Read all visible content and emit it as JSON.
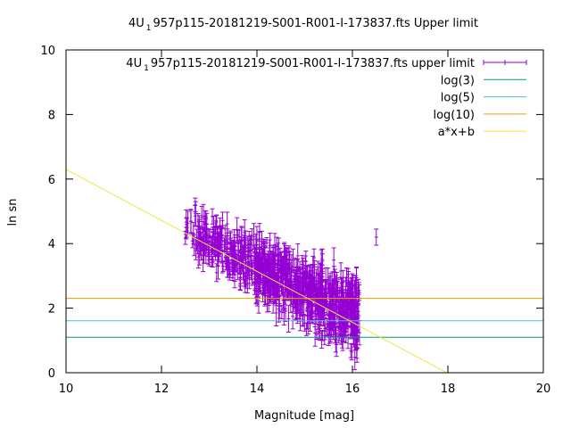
{
  "chart_data": {
    "type": "scatter",
    "title": {
      "prefix": "4U",
      "subscript": "1",
      "rest": "957p115-20181219-S001-R001-I-173837.fts Upper limit"
    },
    "xlabel": "Magnitude [mag]",
    "ylabel": "ln sn",
    "xlim": [
      10,
      20
    ],
    "ylim": [
      0,
      10
    ],
    "x_ticks": [
      10,
      12,
      14,
      16,
      18,
      20
    ],
    "y_ticks": [
      0,
      2,
      4,
      6,
      8,
      10
    ],
    "grid": false,
    "legend_position": "top-right",
    "series": [
      {
        "name": {
          "prefix": "4U",
          "subscript": "1",
          "rest": "957p115-20181219-S001-R001-I-173837.fts upper limit"
        },
        "style": "points-with-errorbars",
        "color": "#9400d3",
        "x_range": [
          12.45,
          16.15
        ],
        "y_center_fit": {
          "a": -0.75,
          "b": 13.8
        },
        "y_spread": 0.45,
        "y_error_typical": 0.3,
        "outlier": {
          "x": 16.5,
          "y": 4.2,
          "error": 0.25
        }
      },
      {
        "name": "log(3)",
        "style": "line",
        "color": "#009e73",
        "y": 1.0986
      },
      {
        "name": "log(5)",
        "style": "line",
        "color": "#56b4e9",
        "y": 1.6094
      },
      {
        "name": "log(10)",
        "style": "line",
        "color": "#e69f00",
        "y": 2.3026
      },
      {
        "name": "a*x+b",
        "style": "line",
        "color": "#f0e442",
        "a": -0.79,
        "b": 14.2
      }
    ]
  }
}
